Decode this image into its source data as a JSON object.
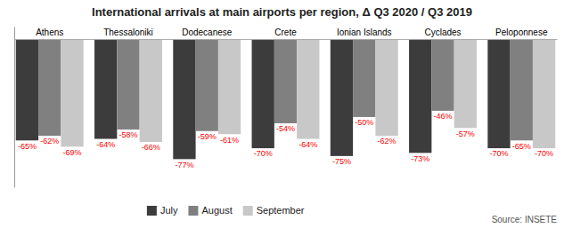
{
  "chart_data": {
    "type": "bar",
    "title": "International arrivals at main airports per region, Δ Q3 2020 / Q3 2019",
    "categories": [
      "Athens",
      "Thessaloniki",
      "Dodecanese",
      "Crete",
      "Ionian Islands",
      "Cyclades",
      "Peloponnese"
    ],
    "series": [
      {
        "name": "July",
        "color": "#3c3c3c",
        "values": [
          -65,
          -64,
          -77,
          -70,
          -75,
          -73,
          -70
        ],
        "value_labels": [
          "-65%",
          "-64%",
          "-77%",
          "-70%",
          "-75%",
          "-73%",
          "-70%"
        ]
      },
      {
        "name": "August",
        "color": "#808080",
        "values": [
          -62,
          -58,
          -59,
          -54,
          -50,
          -46,
          -65
        ],
        "value_labels": [
          "-62%",
          "-58%",
          "-59%",
          "-54%",
          "-50%",
          "-46%",
          "-65%"
        ]
      },
      {
        "name": "September",
        "color": "#c8c8c8",
        "values": [
          -69,
          -66,
          -61,
          -64,
          -62,
          -57,
          -70
        ],
        "value_labels": [
          "-69%",
          "-66%",
          "-61%",
          "-64%",
          "-62%",
          "-57%",
          "-70%"
        ]
      }
    ],
    "ylim": [
      -95,
      8
    ],
    "yticks": [],
    "grid": false,
    "legend": "bottom",
    "data_labels": true,
    "tick_labels": "x",
    "annotations": [
      "Source: INSETE"
    ]
  }
}
